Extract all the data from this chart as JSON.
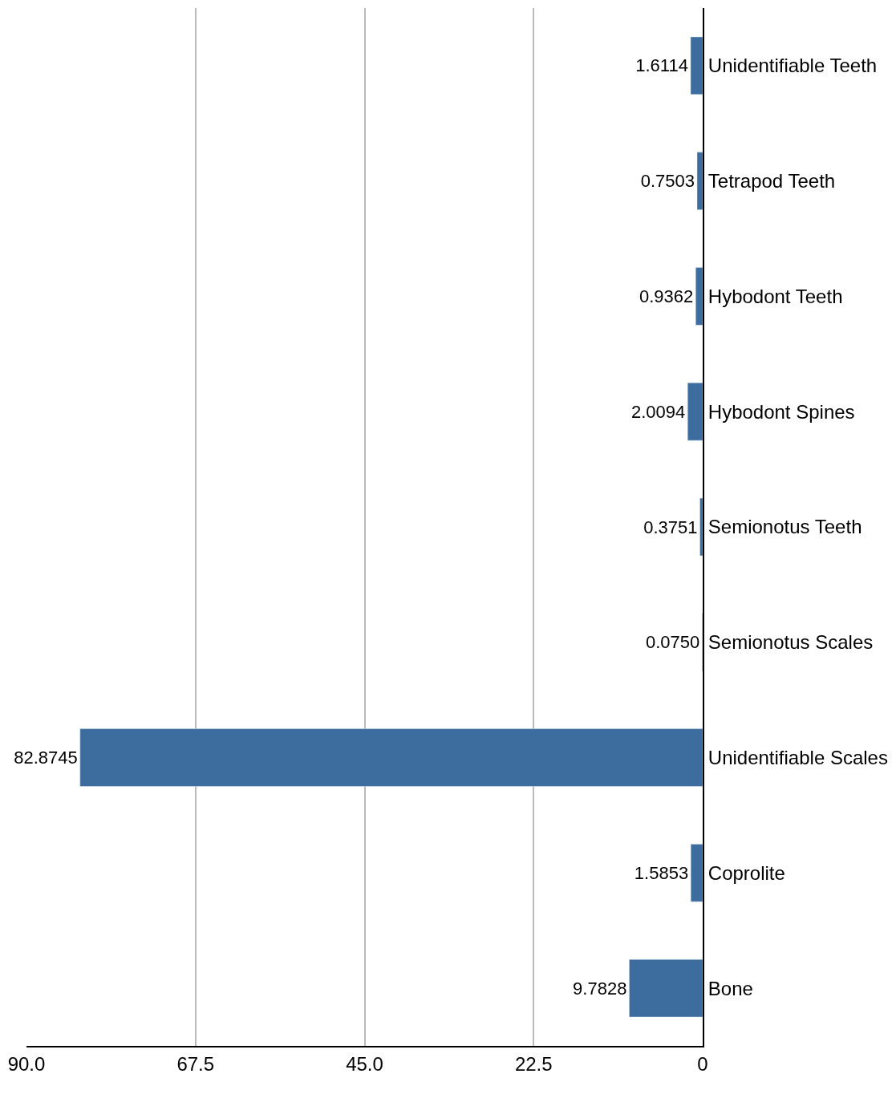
{
  "chart_data": {
    "type": "bar",
    "orientation": "horizontal",
    "categories": [
      "Unidentifiable Teeth",
      "Tetrapod Teeth",
      "Hybodont Teeth",
      "Hybodont Spines",
      "Semionotus Teeth",
      "Semionotus Scales",
      "Unidentifiable Scales",
      "Coprolite",
      "Bone"
    ],
    "values": [
      1.6114,
      0.7503,
      0.9362,
      2.0094,
      0.3751,
      0.075,
      82.8745,
      1.5853,
      9.7828
    ],
    "value_labels": [
      "1.6114",
      "0.7503",
      "0.9362",
      "2.0094",
      "0.3751",
      "0.0750",
      "82.8745",
      "1.5853",
      "9.7828"
    ],
    "color": "#3d6d9e",
    "xlim": [
      90,
      0
    ],
    "xticks": [
      {
        "value": 90,
        "label": "90.0"
      },
      67.5,
      {
        "value": 45,
        "label": "45.0"
      },
      22.5,
      0
    ],
    "grid": "x"
  }
}
